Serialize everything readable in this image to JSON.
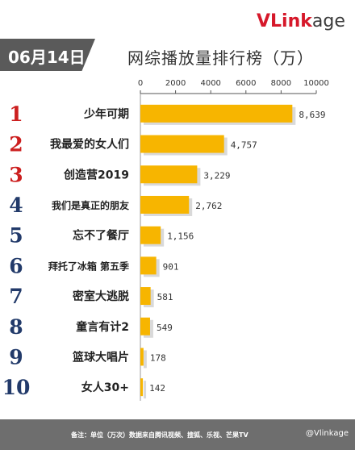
{
  "header": {
    "date": "06月14日",
    "title": "网综播放量排行榜（万）",
    "logo_red": "VLink",
    "logo_dark": "age"
  },
  "footer": {
    "note": "备注：单位（万次）数据来自腾讯视频、搜狐、乐视、芒果TV",
    "weibo": "@Vlinkage"
  },
  "colors": {
    "bar": "#f7b500",
    "rank_red": "#cc1f1f",
    "rank_navy": "#223a6a",
    "footer": "#6e6e6e"
  },
  "chart_data": {
    "type": "bar",
    "orientation": "horizontal",
    "title": "网综播放量排行榜（万）",
    "xlim": [
      0,
      10000
    ],
    "x_ticks": [
      "0",
      "2000",
      "4000",
      "6000",
      "8000",
      "10000"
    ],
    "grid": false,
    "ranks": [
      "1",
      "2",
      "3",
      "4",
      "5",
      "6",
      "7",
      "8",
      "9",
      "10"
    ],
    "categories": [
      "少年可期",
      "我最爱的女人们",
      "创造营2019",
      "我们是真正的朋友",
      "忘不了餐厅",
      "拜托了冰箱 第五季",
      "密室大逃脱",
      "童言有计2",
      "篮球大唱片",
      "女人30+"
    ],
    "values": [
      8639,
      4757,
      3229,
      2762,
      1156,
      901,
      581,
      549,
      178,
      142
    ],
    "value_labels": [
      "8,639",
      "4,757",
      "3,229",
      "2,762",
      "1,156",
      "901",
      "581",
      "549",
      "178",
      "142"
    ]
  }
}
